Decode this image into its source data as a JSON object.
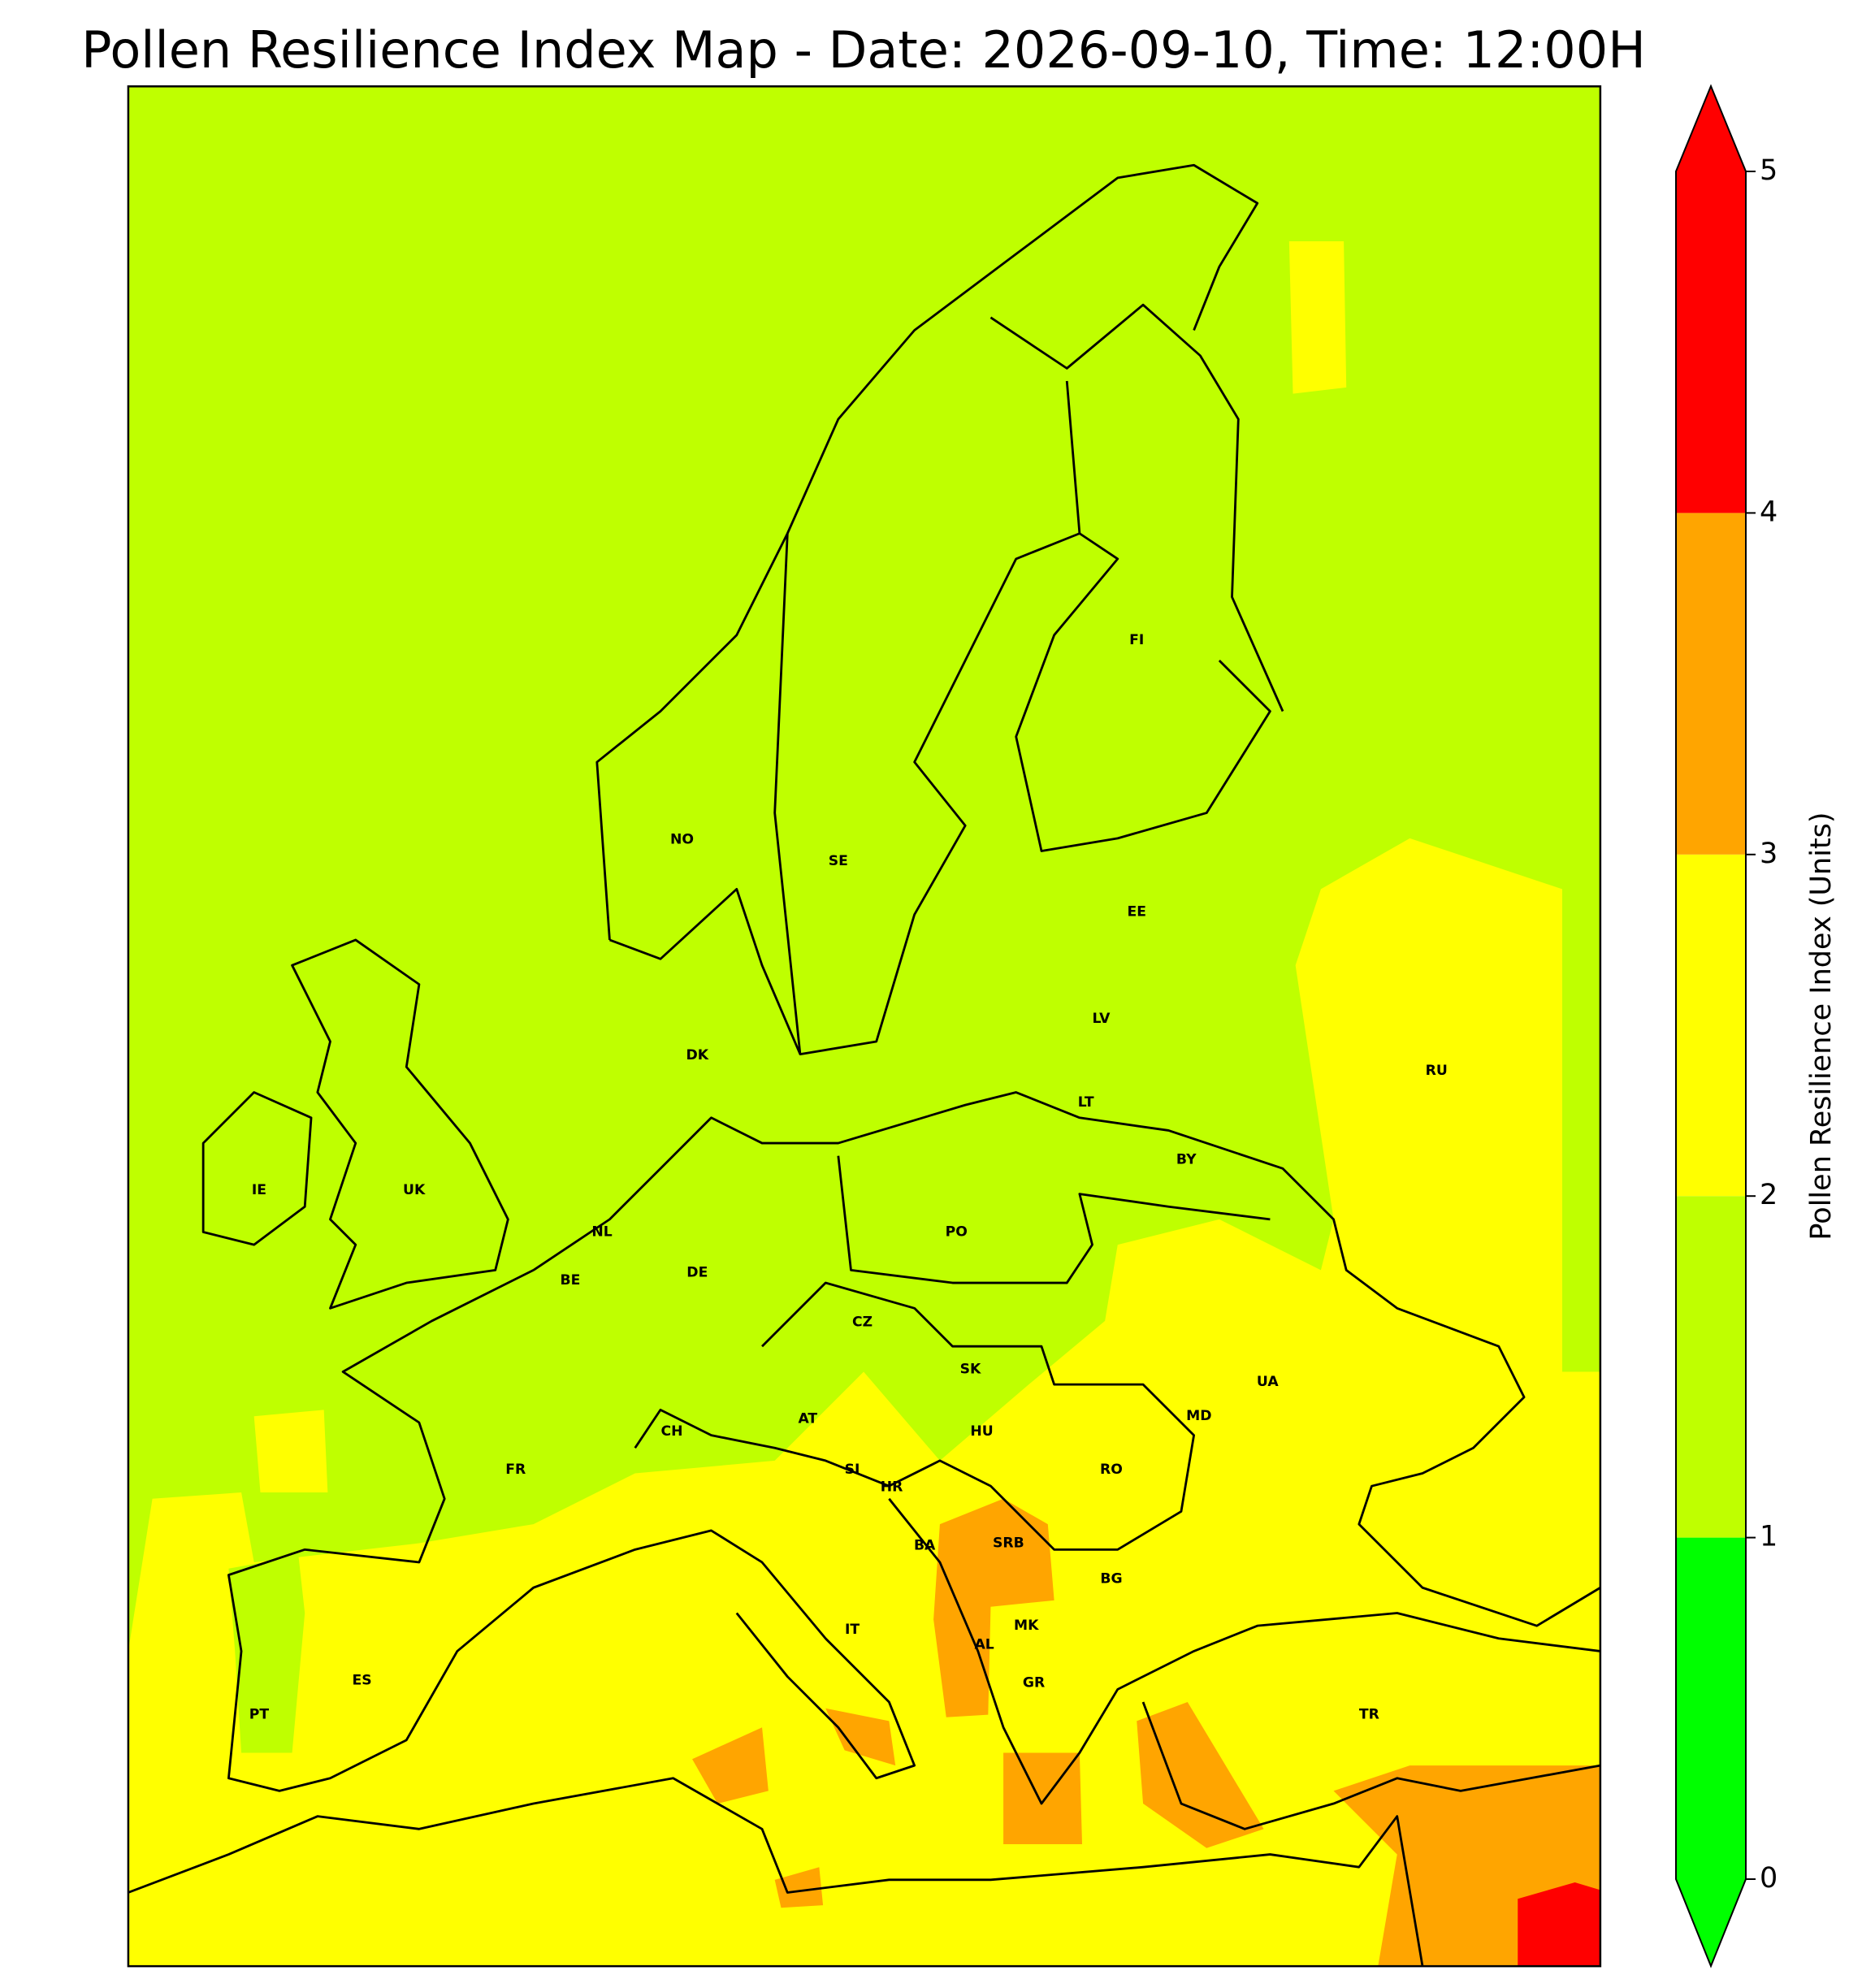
{
  "title": "Pollen Resilience Index Map - Date: 2026-09-10, Time: 12:00H",
  "colorbar": {
    "label": "Pollen Resilience Index (Units)",
    "ticks": [
      0,
      1,
      2,
      3,
      4,
      5
    ],
    "colors": [
      "#00ff00",
      "#bfff00",
      "#ffff00",
      "#ffa500",
      "#ff0000"
    ]
  },
  "map": {
    "background": "#bfff00",
    "country_labels": [
      "NO",
      "SE",
      "FI",
      "EE",
      "LV",
      "LT",
      "BY",
      "RU",
      "DK",
      "IE",
      "UK",
      "NL",
      "BE",
      "DE",
      "PO",
      "CZ",
      "SK",
      "UA",
      "MD",
      "AT",
      "CH",
      "HU",
      "FR",
      "SI",
      "RO",
      "HR",
      "BA",
      "SRB",
      "BG",
      "MK",
      "AL",
      "IT",
      "GR",
      "ES",
      "PT",
      "TR"
    ]
  }
}
